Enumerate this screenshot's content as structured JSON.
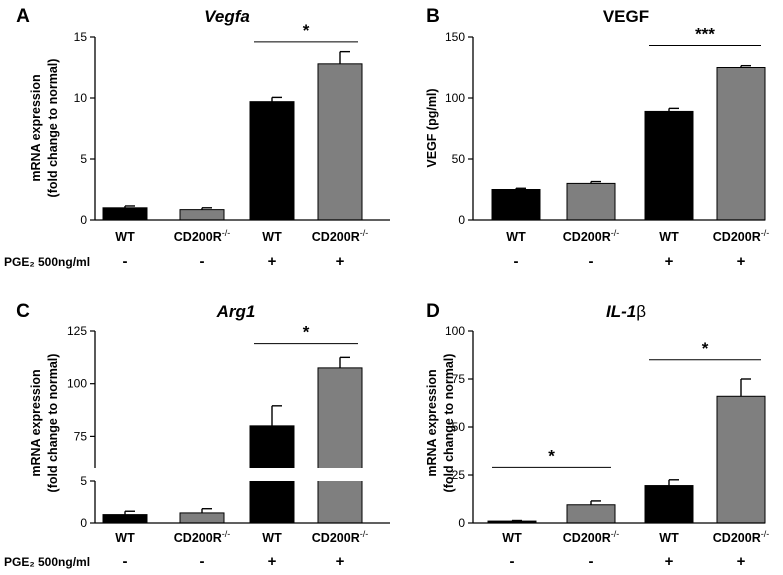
{
  "pge_label": "PGE₂ 500ng/ml",
  "chart_data": [
    {
      "type": "bar",
      "panel": "A",
      "title": "Vegfa",
      "title_italic": true,
      "ylabel_lines": [
        "mRNA expression",
        "(fold change to normal)"
      ],
      "categories": [
        "WT",
        "CD200R",
        "WT",
        "CD200R"
      ],
      "superscript": [
        "",
        "-/-",
        "",
        "-/-"
      ],
      "values": [
        1.0,
        0.85,
        9.7,
        12.8
      ],
      "errors": [
        0.15,
        0.15,
        0.35,
        1.0
      ],
      "colors": [
        "#000000",
        "#7f7f7f",
        "#000000",
        "#7f7f7f"
      ],
      "ylim": [
        0,
        15
      ],
      "yticks": [
        0,
        5,
        10,
        15
      ],
      "pge": [
        "-",
        "-",
        "+",
        "+"
      ],
      "significance": [
        {
          "from": 2,
          "to": 3,
          "label": "*",
          "y": 14.6
        }
      ]
    },
    {
      "type": "bar",
      "panel": "B",
      "title": "VEGF",
      "title_italic": false,
      "ylabel_lines": [
        "VEGF (pg/ml)"
      ],
      "categories": [
        "WT",
        "CD200R",
        "WT",
        "CD200R"
      ],
      "superscript": [
        "",
        "-/-",
        "",
        "-/-"
      ],
      "values": [
        25,
        30,
        89,
        125
      ],
      "errors": [
        1,
        1.5,
        2.5,
        1.5
      ],
      "colors": [
        "#000000",
        "#7f7f7f",
        "#000000",
        "#7f7f7f"
      ],
      "ylim": [
        0,
        150
      ],
      "yticks": [
        0,
        50,
        100,
        150
      ],
      "pge": [
        "-",
        "-",
        "+",
        "+"
      ],
      "significance": [
        {
          "from": 2,
          "to": 3,
          "label": "***",
          "y": 143
        }
      ]
    },
    {
      "type": "bar",
      "panel": "C",
      "title": "Arg1",
      "title_italic": true,
      "ylabel_lines": [
        "mRNA expression",
        "(fold change to normal)"
      ],
      "categories": [
        "WT",
        "CD200R",
        "WT",
        "CD200R"
      ],
      "superscript": [
        "",
        "-/-",
        "",
        "-/-"
      ],
      "values": [
        1.0,
        1.2,
        80,
        107.5
      ],
      "errors": [
        0.4,
        0.5,
        9.5,
        5
      ],
      "colors": [
        "#000000",
        "#7f7f7f",
        "#000000",
        "#7f7f7f"
      ],
      "broken_axis": true,
      "ylim_lower": [
        0,
        5
      ],
      "ylim_upper": [
        60,
        125
      ],
      "yticks_lower": [
        0,
        5
      ],
      "yticks_upper": [
        75,
        100,
        125
      ],
      "pge": [
        "-",
        "-",
        "+",
        "+"
      ],
      "significance": [
        {
          "from": 2,
          "to": 3,
          "label": "*",
          "y": 119
        }
      ]
    },
    {
      "type": "bar",
      "panel": "D",
      "title": "IL-1",
      "title_suffix": "β",
      "title_italic": true,
      "ylabel_lines": [
        "mRNA expression",
        "(fold change to normal)"
      ],
      "categories": [
        "WT",
        "CD200R",
        "WT",
        "CD200R"
      ],
      "superscript": [
        "",
        "-/-",
        "",
        "-/-"
      ],
      "values": [
        1.0,
        9.5,
        19.5,
        66
      ],
      "errors": [
        0.3,
        2.0,
        3.0,
        9.0
      ],
      "colors": [
        "#000000",
        "#7f7f7f",
        "#000000",
        "#7f7f7f"
      ],
      "ylim": [
        0,
        100
      ],
      "yticks": [
        0,
        25,
        50,
        75,
        100
      ],
      "pge": [
        "-",
        "-",
        "+",
        "+"
      ],
      "significance": [
        {
          "from": 0,
          "to": 1,
          "label": "*",
          "y": 29
        },
        {
          "from": 2,
          "to": 3,
          "label": "*",
          "y": 85
        }
      ]
    }
  ]
}
